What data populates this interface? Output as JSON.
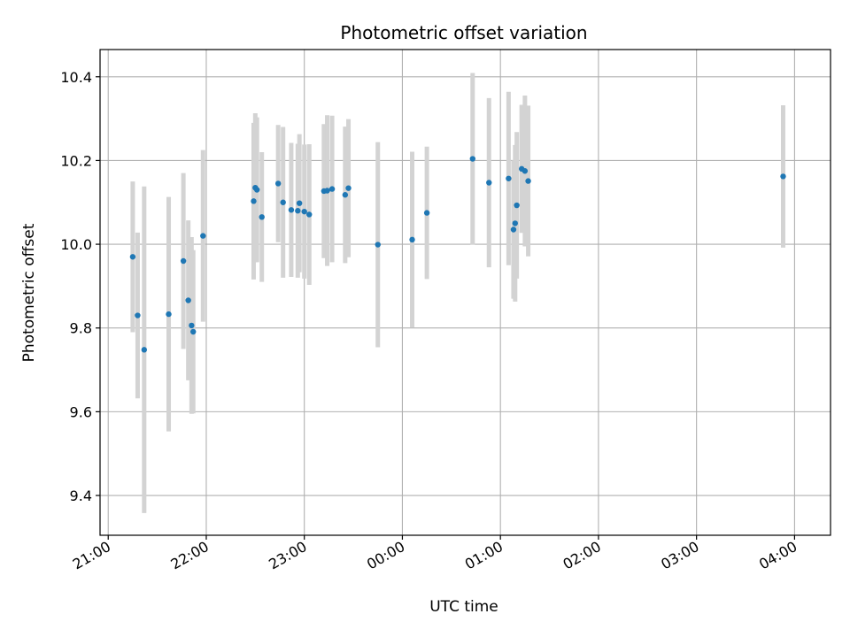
{
  "chart_data": {
    "type": "scatter",
    "title": "Photometric offset variation",
    "xlabel": "UTC time",
    "ylabel": "Photometric offset",
    "xlim": [
      "20:55",
      "04:22"
    ],
    "ylim": [
      9.305,
      10.465
    ],
    "x_ticks": [
      "21:00",
      "22:00",
      "23:00",
      "00:00",
      "01:00",
      "02:00",
      "03:00",
      "04:00"
    ],
    "y_ticks": [
      9.4,
      9.6,
      9.8,
      10.0,
      10.2,
      10.4
    ],
    "grid": true,
    "colors": {
      "point": "#1f77b4",
      "errorbar": "#d3d3d3",
      "grid": "#b0b0b0"
    },
    "points": [
      {
        "x": "21:15",
        "y": 9.97,
        "err": 0.18
      },
      {
        "x": "21:18",
        "y": 9.83,
        "err": 0.198
      },
      {
        "x": "21:22",
        "y": 9.748,
        "err": 0.39
      },
      {
        "x": "21:37",
        "y": 9.833,
        "err": 0.28
      },
      {
        "x": "21:46",
        "y": 9.96,
        "err": 0.21
      },
      {
        "x": "21:49",
        "y": 9.866,
        "err": 0.191
      },
      {
        "x": "21:51",
        "y": 9.806,
        "err": 0.211
      },
      {
        "x": "21:52",
        "y": 9.791,
        "err": 0.195
      },
      {
        "x": "21:58",
        "y": 10.02,
        "err": 0.205
      },
      {
        "x": "22:29",
        "y": 10.103,
        "err": 0.187
      },
      {
        "x": "22:30",
        "y": 10.135,
        "err": 0.178
      },
      {
        "x": "22:31",
        "y": 10.13,
        "err": 0.173
      },
      {
        "x": "22:34",
        "y": 10.065,
        "err": 0.155
      },
      {
        "x": "22:44",
        "y": 10.145,
        "err": 0.14
      },
      {
        "x": "22:47",
        "y": 10.1,
        "err": 0.18
      },
      {
        "x": "22:52",
        "y": 10.082,
        "err": 0.16
      },
      {
        "x": "22:56",
        "y": 10.08,
        "err": 0.16
      },
      {
        "x": "22:57",
        "y": 10.098,
        "err": 0.165
      },
      {
        "x": "23:00",
        "y": 10.078,
        "err": 0.16
      },
      {
        "x": "23:03",
        "y": 10.071,
        "err": 0.168
      },
      {
        "x": "23:12",
        "y": 10.127,
        "err": 0.16
      },
      {
        "x": "23:14",
        "y": 10.128,
        "err": 0.18
      },
      {
        "x": "23:17",
        "y": 10.132,
        "err": 0.175
      },
      {
        "x": "23:25",
        "y": 10.118,
        "err": 0.163
      },
      {
        "x": "23:27",
        "y": 10.134,
        "err": 0.165
      },
      {
        "x": "23:45",
        "y": 9.999,
        "err": 0.245
      },
      {
        "x": "00:06",
        "y": 10.011,
        "err": 0.21
      },
      {
        "x": "00:15",
        "y": 10.075,
        "err": 0.158
      },
      {
        "x": "00:43",
        "y": 10.204,
        "err": 0.205
      },
      {
        "x": "00:53",
        "y": 10.147,
        "err": 0.202
      },
      {
        "x": "01:05",
        "y": 10.157,
        "err": 0.207
      },
      {
        "x": "01:08",
        "y": 10.035,
        "err": 0.165
      },
      {
        "x": "01:09",
        "y": 10.05,
        "err": 0.187
      },
      {
        "x": "01:10",
        "y": 10.093,
        "err": 0.175
      },
      {
        "x": "01:13",
        "y": 10.18,
        "err": 0.153
      },
      {
        "x": "01:15",
        "y": 10.175,
        "err": 0.18
      },
      {
        "x": "01:17",
        "y": 10.151,
        "err": 0.18
      },
      {
        "x": "03:53",
        "y": 10.162,
        "err": 0.17
      }
    ]
  }
}
